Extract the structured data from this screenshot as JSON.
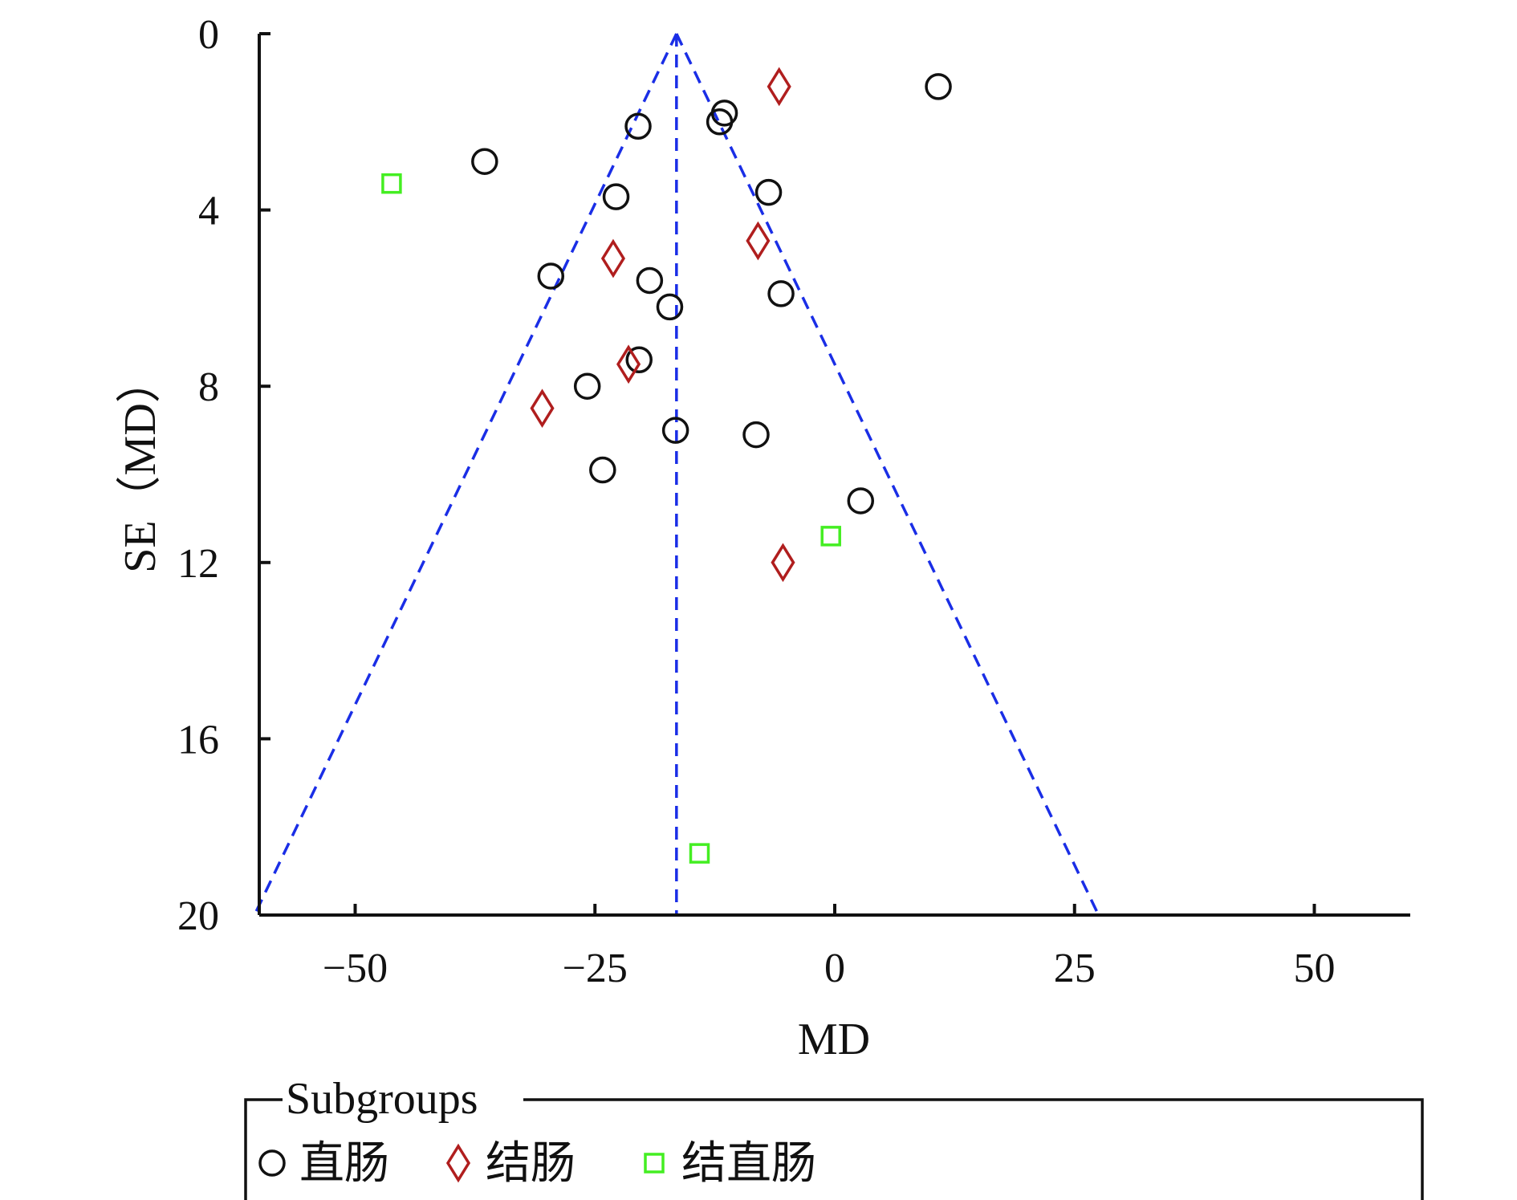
{
  "chart_data": {
    "type": "scatter",
    "title": "",
    "xlabel": "MD",
    "ylabel": "SE（MD）",
    "xlim": [
      -60,
      60
    ],
    "ylim": [
      0,
      20
    ],
    "y_inverted": true,
    "x_ticks": [
      -50,
      -25,
      0,
      25,
      50
    ],
    "x_tick_labels": [
      "−50",
      "−25",
      "0",
      "25",
      "50"
    ],
    "y_ticks": [
      0,
      4,
      8,
      12,
      16,
      20
    ],
    "y_tick_labels": [
      "0",
      "4",
      "8",
      "12",
      "16",
      "20"
    ],
    "pooled_effect": -16.5,
    "funnel_multiplier": 2.2,
    "line_color": "#1a2ee6",
    "legend": {
      "title": "Subgroups",
      "placement": "bottom"
    },
    "series": [
      {
        "name": "直肠",
        "marker": "circle",
        "color": "#111111",
        "points": [
          {
            "x": 10.8,
            "y": 1.2
          },
          {
            "x": -11.5,
            "y": 1.8
          },
          {
            "x": -12.0,
            "y": 2.0
          },
          {
            "x": -20.5,
            "y": 2.1
          },
          {
            "x": -36.5,
            "y": 2.9
          },
          {
            "x": -6.9,
            "y": 3.6
          },
          {
            "x": -22.8,
            "y": 3.7
          },
          {
            "x": -29.6,
            "y": 5.5
          },
          {
            "x": -19.3,
            "y": 5.6
          },
          {
            "x": -5.6,
            "y": 5.9
          },
          {
            "x": -17.2,
            "y": 6.2
          },
          {
            "x": -20.4,
            "y": 7.4
          },
          {
            "x": -25.8,
            "y": 8.0
          },
          {
            "x": -16.6,
            "y": 9.0
          },
          {
            "x": -8.2,
            "y": 9.1
          },
          {
            "x": -24.2,
            "y": 9.9
          },
          {
            "x": 2.7,
            "y": 10.6
          }
        ]
      },
      {
        "name": "结肠",
        "marker": "diamond",
        "color": "#b01e1e",
        "points": [
          {
            "x": -5.8,
            "y": 1.2
          },
          {
            "x": -8.0,
            "y": 4.7
          },
          {
            "x": -23.1,
            "y": 5.1
          },
          {
            "x": -21.5,
            "y": 7.5
          },
          {
            "x": -30.5,
            "y": 8.5
          },
          {
            "x": -5.4,
            "y": 12.0
          }
        ]
      },
      {
        "name": "结直肠",
        "marker": "square",
        "color": "#44ee22",
        "points": [
          {
            "x": -46.2,
            "y": 3.4
          },
          {
            "x": -0.4,
            "y": 11.4
          },
          {
            "x": -14.1,
            "y": 18.6
          }
        ]
      }
    ]
  }
}
